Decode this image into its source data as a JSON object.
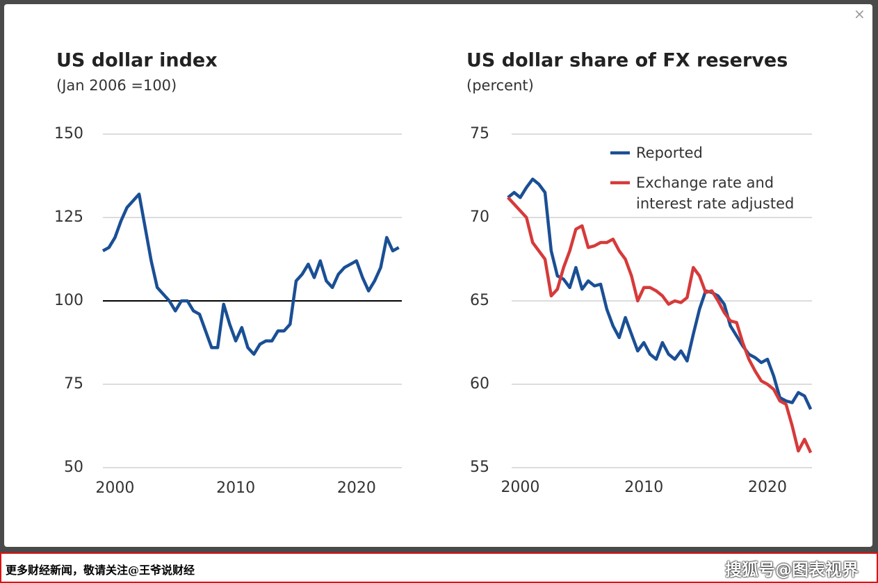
{
  "chart_data": [
    {
      "type": "line",
      "title": "US dollar index",
      "subtitle": "(Jan 2006 =100)",
      "x": [
        1999.0,
        1999.5,
        2000.0,
        2000.5,
        2001.0,
        2001.5,
        2002.0,
        2002.5,
        2003.0,
        2003.5,
        2004.0,
        2004.5,
        2005.0,
        2005.5,
        2006.0,
        2006.5,
        2007.0,
        2007.5,
        2008.0,
        2008.5,
        2009.0,
        2009.5,
        2010.0,
        2010.5,
        2011.0,
        2011.5,
        2012.0,
        2012.5,
        2013.0,
        2013.5,
        2014.0,
        2014.5,
        2015.0,
        2015.5,
        2016.0,
        2016.5,
        2017.0,
        2017.5,
        2018.0,
        2018.5,
        2019.0,
        2019.5,
        2020.0,
        2020.5,
        2021.0,
        2021.5,
        2022.0,
        2022.5,
        2023.0,
        2023.5
      ],
      "series": [
        {
          "name": null,
          "color": "#1a4f95",
          "values": [
            115,
            116,
            119,
            124,
            128,
            130,
            132,
            122,
            112,
            104,
            102,
            100,
            97,
            100,
            100,
            97,
            96,
            91,
            86,
            86,
            99,
            93,
            88,
            92,
            86,
            84,
            87,
            88,
            88,
            91,
            91,
            93,
            106,
            108,
            111,
            107,
            112,
            106,
            104,
            108,
            110,
            111,
            112,
            107,
            103,
            106,
            110,
            119,
            115,
            116
          ]
        }
      ],
      "xlim": [
        1999.0,
        2023.75
      ],
      "xticks": [
        2000,
        2010,
        2020
      ],
      "ylim": [
        50,
        150
      ],
      "yticks": [
        50,
        75,
        100,
        125,
        150
      ],
      "grid": true,
      "reference_line": 100
    },
    {
      "type": "line",
      "title": "US dollar share of FX reserves",
      "subtitle": "(percent)",
      "x": [
        1999.0,
        1999.5,
        2000.0,
        2000.5,
        2001.0,
        2001.5,
        2002.0,
        2002.5,
        2003.0,
        2003.5,
        2004.0,
        2004.5,
        2005.0,
        2005.5,
        2006.0,
        2006.5,
        2007.0,
        2007.5,
        2008.0,
        2008.5,
        2009.0,
        2009.5,
        2010.0,
        2010.5,
        2011.0,
        2011.5,
        2012.0,
        2012.5,
        2013.0,
        2013.5,
        2014.0,
        2014.5,
        2015.0,
        2015.5,
        2016.0,
        2016.5,
        2017.0,
        2017.5,
        2018.0,
        2018.5,
        2019.0,
        2019.5,
        2020.0,
        2020.5,
        2021.0,
        2021.5,
        2022.0,
        2022.5,
        2023.0,
        2023.5
      ],
      "series": [
        {
          "name": "Reported",
          "color": "#1a4f95",
          "values": [
            71.2,
            71.5,
            71.2,
            71.8,
            72.3,
            72.0,
            71.5,
            68,
            66.5,
            66.3,
            65.8,
            67,
            65.7,
            66.2,
            65.9,
            66,
            64.5,
            63.5,
            62.8,
            64,
            63,
            62,
            62.5,
            61.8,
            61.5,
            62.5,
            61.8,
            61.5,
            62,
            61.4,
            63,
            64.5,
            65.6,
            65.5,
            65.3,
            64.8,
            63.5,
            62.9,
            62.3,
            61.8,
            61.6,
            61.3,
            61.5,
            60.5,
            59.2,
            59.0,
            58.9,
            59.5,
            59.3,
            58.5
          ]
        },
        {
          "name": "Exchange rate and interest rate adjusted",
          "color": "#d63a3a",
          "values": [
            71.2,
            70.8,
            70.4,
            70,
            68.5,
            68,
            67.5,
            65.3,
            65.7,
            67,
            68,
            69.3,
            69.5,
            68.2,
            68.3,
            68.5,
            68.5,
            68.7,
            68,
            67.5,
            66.5,
            65,
            65.8,
            65.8,
            65.6,
            65.3,
            64.8,
            65,
            64.9,
            65.2,
            67,
            66.5,
            65.5,
            65.6,
            65,
            64.3,
            63.8,
            63.7,
            62.5,
            61.5,
            60.8,
            60.2,
            60,
            59.7,
            59,
            58.8,
            57.5,
            56,
            56.7,
            55.9
          ]
        }
      ],
      "xlim": [
        1999.3,
        2023.6
      ],
      "xticks": [
        2000,
        2010,
        2020
      ],
      "ylim": [
        55,
        75
      ],
      "yticks": [
        55,
        60,
        65,
        70,
        75
      ],
      "grid": true,
      "legend": "upper right"
    }
  ],
  "ui": {
    "close": "×",
    "footer_left": "更多财经新闻，敬请关注@王爷说财经",
    "footer_right": "搜狐号@图表视界"
  }
}
